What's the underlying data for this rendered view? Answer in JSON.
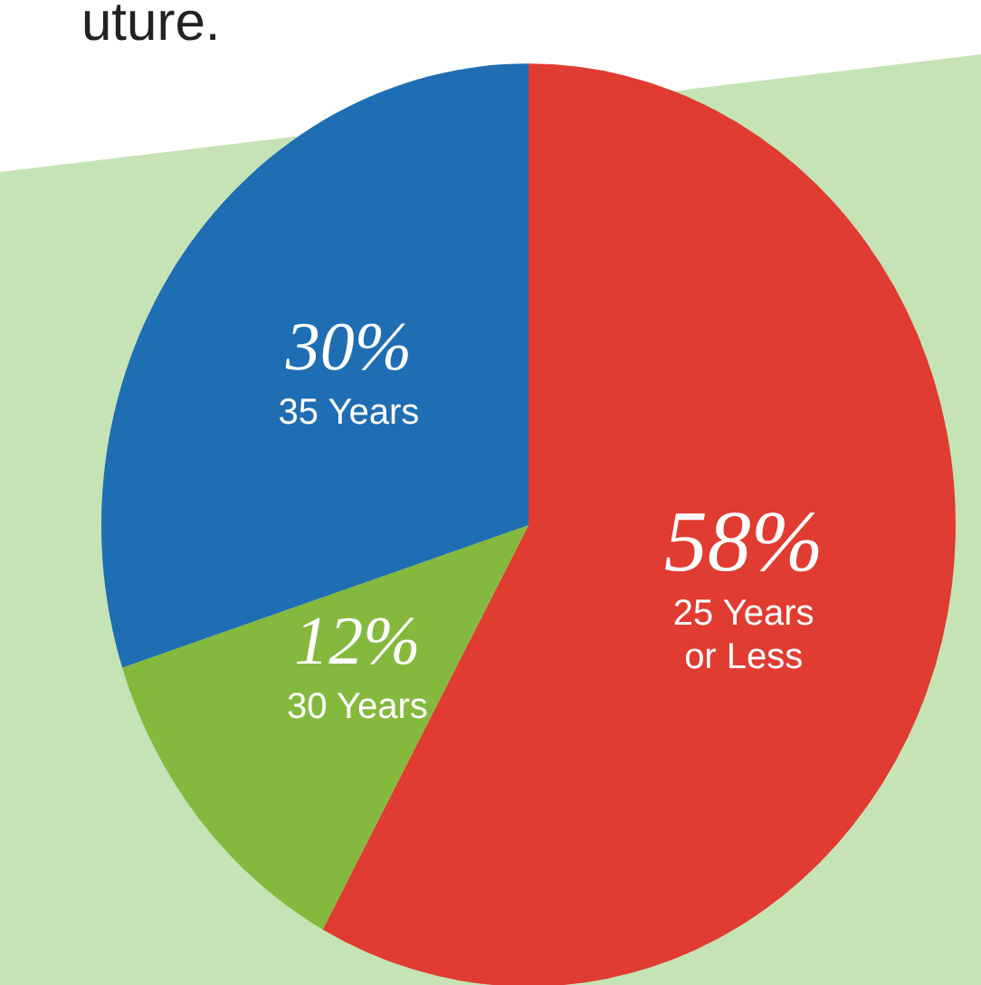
{
  "chart_data": {
    "type": "pie",
    "categories": [
      "25 Years or Less",
      "30 Years",
      "35 Years"
    ],
    "values": [
      58,
      12,
      30
    ],
    "colors": [
      "#e03c31",
      "#84b93d",
      "#1f6db3"
    ],
    "value_labels": [
      "58%",
      "12%",
      "30%"
    ],
    "annotations": [
      "uture."
    ]
  }
}
